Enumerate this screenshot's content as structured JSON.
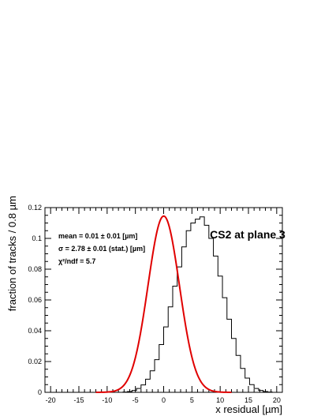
{
  "chart_data": {
    "type": "histogram+fit",
    "xlabel": "x residual [µm]",
    "ylabel": "fraction of tracks / 0.8 µm",
    "xlim": [
      -21,
      21
    ],
    "ylim": [
      0,
      0.12
    ],
    "x_ticks": [
      "-20",
      "-15",
      "-10",
      "-5",
      "0",
      "5",
      "10",
      "15",
      "20"
    ],
    "y_ticks": [
      "0",
      "0.02",
      "0.04",
      "0.06",
      "0.08",
      "0.1",
      "0.12"
    ],
    "annotation": "CS2 at plane 3",
    "stats": {
      "mean": "mean = 0.01 ± 0.01 [µm]",
      "sigma": "σ = 2.78 ± 0.01 (stat.) [µm]",
      "chi2": "χ²/ndf = 5.7"
    },
    "fit": {
      "function": "gaussian",
      "mean": 0.01,
      "sigma": 2.78,
      "amplitude": 0.1145,
      "color": "#e00000"
    },
    "histogram": {
      "bin_width": 0.8,
      "bin_edges_start": -12.0,
      "values": [
        0,
        0,
        0,
        0,
        0,
        0,
        0.0002,
        0.0005,
        0.0012,
        0.0025,
        0.0048,
        0.0085,
        0.014,
        0.0212,
        0.031,
        0.0425,
        0.0555,
        0.069,
        0.0815,
        0.0945,
        0.105,
        0.11,
        0.1125,
        0.114,
        0.1085,
        0.1,
        0.0885,
        0.0755,
        0.0615,
        0.0475,
        0.035,
        0.024,
        0.0155,
        0.0092,
        0.005,
        0.0025,
        0.0012,
        0.0005,
        0.0002,
        0,
        0
      ],
      "color": "#000000"
    },
    "grid": false
  }
}
